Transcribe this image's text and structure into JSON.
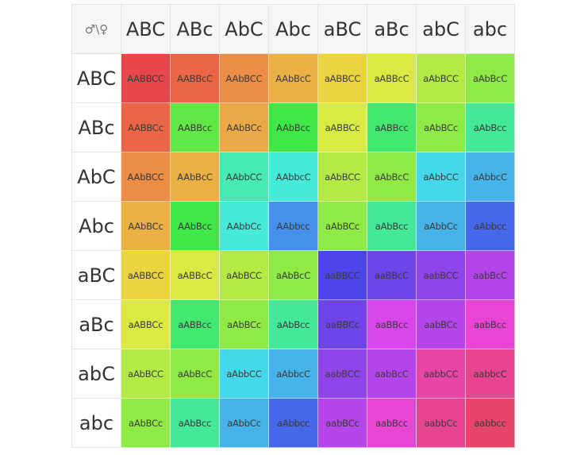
{
  "corner_label": "♂\\♀",
  "column_headers": [
    "ABC",
    "ABc",
    "AbC",
    "Abc",
    "aBC",
    "aBc",
    "abC",
    "abc"
  ],
  "row_headers": [
    "ABC",
    "ABc",
    "AbC",
    "Abc",
    "aBC",
    "aBc",
    "abC",
    "abc"
  ],
  "cells": [
    [
      "AABBCC",
      "AABBcC",
      "AAbBCC",
      "AAbBcC",
      "aABBCC",
      "aABBcC",
      "aAbBCC",
      "aAbBcC"
    ],
    [
      "AABBCc",
      "AABBcc",
      "AAbBCc",
      "AAbBcc",
      "aABBCc",
      "aABBcc",
      "aAbBCc",
      "aAbBcc"
    ],
    [
      "AAbBCC",
      "AAbBcC",
      "AAbbCC",
      "AAbbcC",
      "aAbBCC",
      "aAbBcC",
      "aAbbCC",
      "aAbbcC"
    ],
    [
      "AAbBCc",
      "AAbBcc",
      "AAbbCc",
      "AAbbcc",
      "aAbBCc",
      "aAbBcc",
      "aAbbCc",
      "aAbbcc"
    ],
    [
      "aABBCC",
      "aABBcC",
      "aAbBCC",
      "aAbBcC",
      "aaBBCC",
      "aaBBcC",
      "aabBCC",
      "aabBcC"
    ],
    [
      "aABBCc",
      "aABBcc",
      "aAbBCc",
      "aAbBcc",
      "aaBBCc",
      "aaBBcc",
      "aabBCc",
      "aabBcc"
    ],
    [
      "aAbBCC",
      "aAbBcC",
      "aAbbCC",
      "aAbbcC",
      "aabBCC",
      "aabBcC",
      "aabbCC",
      "aabbcC"
    ],
    [
      "aAbBCc",
      "aAbBcc",
      "aAbbCc",
      "aAbbcc",
      "aabBCc",
      "aabBcc",
      "aabbCc",
      "aabbcc"
    ]
  ],
  "cell_colors": [
    [
      "#e8464a",
      "#eb6647",
      "#ec8d47",
      "#eab043",
      "#ead440",
      "#dce844",
      "#b4ea44",
      "#8fea45"
    ],
    [
      "#eb6647",
      "#62e846",
      "#ebaa47",
      "#3ee846",
      "#d8ea44",
      "#43e870",
      "#8fea45",
      "#43e898"
    ],
    [
      "#ec8d47",
      "#eab043",
      "#45ebb2",
      "#45ebd8",
      "#b4ea44",
      "#8fea45",
      "#45d8ea",
      "#45b2ea"
    ],
    [
      "#eab043",
      "#3ee846",
      "#45ebd8",
      "#4590ea",
      "#8fea45",
      "#43e898",
      "#45b2ea",
      "#4568ea"
    ],
    [
      "#ead440",
      "#dce844",
      "#b4ea44",
      "#8fea45",
      "#4b45ea",
      "#6f45ea",
      "#9045ea",
      "#b445ea"
    ],
    [
      "#dce844",
      "#43e870",
      "#8fea45",
      "#43e898",
      "#6f45ea",
      "#d845ea",
      "#b445ea",
      "#e845d4"
    ],
    [
      "#b4ea44",
      "#8fea45",
      "#45d8ea",
      "#45b2ea",
      "#9045ea",
      "#b445ea",
      "#e845a8",
      "#e84590"
    ],
    [
      "#8fea45",
      "#43e898",
      "#45b2ea",
      "#4568ea",
      "#b445ea",
      "#e845d4",
      "#e84590",
      "#e8456a"
    ]
  ]
}
